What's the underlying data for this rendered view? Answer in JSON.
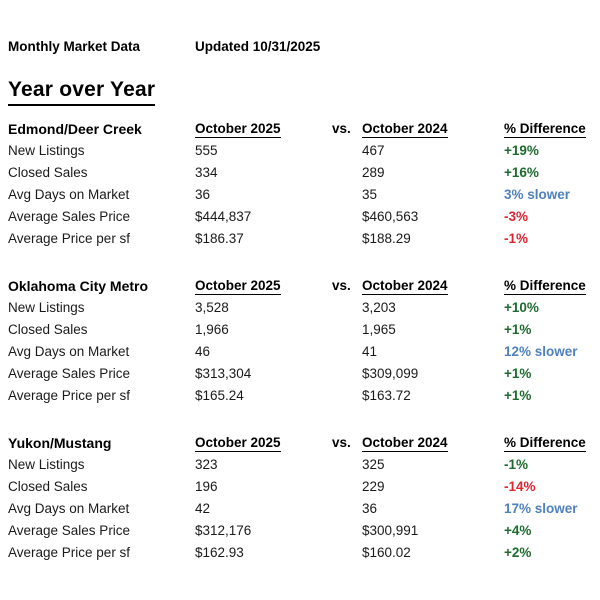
{
  "header": {
    "title": "Monthly Market Data",
    "updated": "Updated 10/31/2025",
    "section_heading": "Year over Year"
  },
  "columns": {
    "current": "October 2025",
    "vs": "vs.",
    "previous": "October 2024",
    "difference": "% Difference"
  },
  "colors": {
    "positive_green": "#1f6b2f",
    "negative_red": "#de2430",
    "slower_blue": "#4f81bd"
  },
  "sections": [
    {
      "region": "Edmond/Deer Creek",
      "rows": [
        {
          "label": "New Listings",
          "current": "555",
          "previous": "467",
          "difference": "+19%",
          "diff_color": "green"
        },
        {
          "label": "Closed Sales",
          "current": "334",
          "previous": "289",
          "difference": "+16%",
          "diff_color": "green"
        },
        {
          "label": "Avg Days on Market",
          "current": "36",
          "previous": "35",
          "difference": "3% slower",
          "diff_color": "blue"
        },
        {
          "label": "Average Sales Price",
          "current": "$444,837",
          "previous": "$460,563",
          "difference": "-3%",
          "diff_color": "red"
        },
        {
          "label": "Average Price per sf",
          "current": "$186.37",
          "previous": "$188.29",
          "difference": "-1%",
          "diff_color": "red"
        }
      ]
    },
    {
      "region": "Oklahoma City Metro",
      "rows": [
        {
          "label": "New Listings",
          "current": "3,528",
          "previous": "3,203",
          "difference": "+10%",
          "diff_color": "green"
        },
        {
          "label": "Closed Sales",
          "current": "1,966",
          "previous": "1,965",
          "difference": "+1%",
          "diff_color": "green"
        },
        {
          "label": "Avg Days on Market",
          "current": "46",
          "previous": "41",
          "difference": "12% slower",
          "diff_color": "blue"
        },
        {
          "label": "Average Sales Price",
          "current": "$313,304",
          "previous": "$309,099",
          "difference": "+1%",
          "diff_color": "green"
        },
        {
          "label": "Average Price per sf",
          "current": "$165.24",
          "previous": "$163.72",
          "difference": "+1%",
          "diff_color": "green"
        }
      ]
    },
    {
      "region": "Yukon/Mustang",
      "rows": [
        {
          "label": "New Listings",
          "current": "323",
          "previous": "325",
          "difference": "-1%",
          "diff_color": "green"
        },
        {
          "label": "Closed Sales",
          "current": "196",
          "previous": "229",
          "difference": "-14%",
          "diff_color": "red"
        },
        {
          "label": "Avg Days on Market",
          "current": "42",
          "previous": "36",
          "difference": "17% slower",
          "diff_color": "blue"
        },
        {
          "label": "Average Sales Price",
          "current": "$312,176",
          "previous": "$300,991",
          "difference": "+4%",
          "diff_color": "green"
        },
        {
          "label": "Average Price per sf",
          "current": "$162.93",
          "previous": "$160.02",
          "difference": "+2%",
          "diff_color": "green"
        }
      ]
    }
  ]
}
